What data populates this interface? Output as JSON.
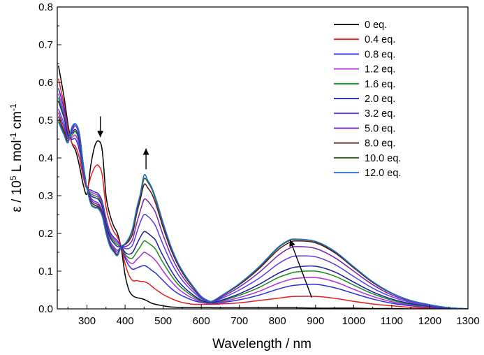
{
  "chart_data": {
    "type": "line",
    "title": "",
    "xlabel": "Wavelength / nm",
    "ylabel": {
      "prefix": "ε / 10",
      "sup1": "5",
      "mid": " L mol",
      "sup2": "-1",
      "mid2": " cm",
      "sup3": "-1"
    },
    "xlim": [
      222,
      1300
    ],
    "ylim": [
      0,
      0.8
    ],
    "x_ticks": [
      300,
      400,
      500,
      600,
      700,
      800,
      900,
      1000,
      1100,
      1200,
      1300
    ],
    "y_ticks": [
      0.0,
      0.1,
      0.2,
      0.3,
      0.4,
      0.5,
      0.6,
      0.7,
      0.8
    ],
    "x_tick_labels": [
      "300",
      "400",
      "500",
      "600",
      "700",
      "800",
      "900",
      "1000",
      "1100",
      "1200",
      "1300"
    ],
    "y_tick_labels": [
      "0.0",
      "0.1",
      "0.2",
      "0.3",
      "0.4",
      "0.5",
      "0.6",
      "0.7",
      "0.8"
    ],
    "grid": false,
    "legend_position": "top-right",
    "x": [
      225,
      240,
      250,
      260,
      270,
      280,
      290,
      300,
      310,
      320,
      330,
      340,
      350,
      360,
      370,
      380,
      390,
      400,
      410,
      420,
      430,
      440,
      450,
      460,
      470,
      480,
      490,
      500,
      520,
      540,
      560,
      580,
      600,
      620,
      630,
      650,
      700,
      750,
      800,
      830,
      850,
      900,
      950,
      1000,
      1050,
      1100,
      1150,
      1200,
      1250,
      1300
    ],
    "series": [
      {
        "name": "0 eq.",
        "color": "#000000",
        "values": [
          0.645,
          0.56,
          0.49,
          0.44,
          0.42,
          0.38,
          0.33,
          0.305,
          0.38,
          0.43,
          0.445,
          0.42,
          0.3,
          0.25,
          0.22,
          0.2,
          0.16,
          0.09,
          0.05,
          0.035,
          0.03,
          0.028,
          0.025,
          0.02,
          0.015,
          0.012,
          0.01,
          0.008,
          0.005,
          0.004,
          0.004,
          0.004,
          0.004,
          0.004,
          0.003,
          0.003,
          0.003,
          0.003,
          0.003,
          0.003,
          0.003,
          0.002,
          0.002,
          0.002,
          0.001,
          0.001,
          0.0,
          0.0,
          0.0,
          0.0
        ]
      },
      {
        "name": "0.4 eq.",
        "color": "#e02020",
        "values": [
          0.61,
          0.54,
          0.48,
          0.44,
          0.43,
          0.4,
          0.35,
          0.32,
          0.35,
          0.375,
          0.38,
          0.355,
          0.27,
          0.23,
          0.205,
          0.19,
          0.165,
          0.12,
          0.09,
          0.075,
          0.075,
          0.073,
          0.072,
          0.068,
          0.06,
          0.052,
          0.045,
          0.038,
          0.028,
          0.02,
          0.015,
          0.012,
          0.012,
          0.012,
          0.012,
          0.013,
          0.016,
          0.022,
          0.028,
          0.032,
          0.033,
          0.033,
          0.028,
          0.02,
          0.013,
          0.008,
          0.004,
          0.002,
          0.001,
          0.0
        ]
      },
      {
        "name": "0.8 eq.",
        "color": "#2b2bd9",
        "values": [
          0.585,
          0.53,
          0.47,
          0.45,
          0.45,
          0.42,
          0.36,
          0.32,
          0.315,
          0.31,
          0.305,
          0.285,
          0.24,
          0.205,
          0.19,
          0.18,
          0.165,
          0.135,
          0.115,
          0.105,
          0.108,
          0.112,
          0.115,
          0.11,
          0.102,
          0.095,
          0.085,
          0.075,
          0.055,
          0.04,
          0.03,
          0.022,
          0.017,
          0.014,
          0.014,
          0.016,
          0.024,
          0.036,
          0.052,
          0.06,
          0.063,
          0.065,
          0.056,
          0.041,
          0.026,
          0.015,
          0.008,
          0.004,
          0.001,
          0.0
        ]
      },
      {
        "name": "1.2 eq.",
        "color": "#b02cd6",
        "values": [
          0.57,
          0.52,
          0.47,
          0.455,
          0.46,
          0.43,
          0.36,
          0.32,
          0.31,
          0.305,
          0.3,
          0.28,
          0.235,
          0.2,
          0.185,
          0.175,
          0.165,
          0.14,
          0.125,
          0.12,
          0.13,
          0.14,
          0.15,
          0.145,
          0.138,
          0.128,
          0.115,
          0.1,
          0.074,
          0.053,
          0.038,
          0.027,
          0.019,
          0.015,
          0.015,
          0.018,
          0.03,
          0.046,
          0.067,
          0.077,
          0.081,
          0.083,
          0.072,
          0.052,
          0.033,
          0.019,
          0.01,
          0.005,
          0.002,
          0.0
        ]
      },
      {
        "name": "1.6 eq.",
        "color": "#1a8c1a",
        "values": [
          0.56,
          0.51,
          0.465,
          0.46,
          0.47,
          0.44,
          0.365,
          0.32,
          0.305,
          0.3,
          0.295,
          0.275,
          0.23,
          0.195,
          0.18,
          0.17,
          0.165,
          0.145,
          0.135,
          0.135,
          0.15,
          0.165,
          0.18,
          0.175,
          0.168,
          0.158,
          0.14,
          0.122,
          0.09,
          0.064,
          0.046,
          0.032,
          0.021,
          0.016,
          0.016,
          0.02,
          0.036,
          0.056,
          0.082,
          0.093,
          0.098,
          0.1,
          0.087,
          0.063,
          0.04,
          0.023,
          0.012,
          0.006,
          0.002,
          0.0
        ]
      },
      {
        "name": "2.0 eq.",
        "color": "#1c1c9e",
        "values": [
          0.55,
          0.505,
          0.46,
          0.465,
          0.475,
          0.445,
          0.37,
          0.32,
          0.3,
          0.295,
          0.29,
          0.27,
          0.225,
          0.19,
          0.175,
          0.165,
          0.165,
          0.15,
          0.145,
          0.15,
          0.17,
          0.19,
          0.205,
          0.2,
          0.192,
          0.182,
          0.16,
          0.14,
          0.103,
          0.073,
          0.052,
          0.036,
          0.023,
          0.017,
          0.017,
          0.022,
          0.04,
          0.064,
          0.093,
          0.106,
          0.111,
          0.113,
          0.098,
          0.071,
          0.045,
          0.026,
          0.014,
          0.007,
          0.002,
          0.0
        ]
      },
      {
        "name": "3.2 eq.",
        "color": "#5a3ce6",
        "values": [
          0.53,
          0.49,
          0.455,
          0.47,
          0.485,
          0.455,
          0.375,
          0.32,
          0.295,
          0.285,
          0.28,
          0.26,
          0.215,
          0.18,
          0.165,
          0.155,
          0.165,
          0.16,
          0.16,
          0.17,
          0.2,
          0.23,
          0.25,
          0.245,
          0.235,
          0.22,
          0.195,
          0.17,
          0.125,
          0.09,
          0.064,
          0.044,
          0.027,
          0.019,
          0.019,
          0.026,
          0.05,
          0.08,
          0.118,
          0.135,
          0.14,
          0.138,
          0.118,
          0.086,
          0.055,
          0.032,
          0.017,
          0.008,
          0.003,
          0.0
        ]
      },
      {
        "name": "5.0 eq.",
        "color": "#7a22a8",
        "values": [
          0.52,
          0.48,
          0.45,
          0.475,
          0.49,
          0.46,
          0.38,
          0.32,
          0.29,
          0.28,
          0.275,
          0.255,
          0.21,
          0.175,
          0.16,
          0.15,
          0.165,
          0.165,
          0.17,
          0.185,
          0.225,
          0.26,
          0.29,
          0.285,
          0.272,
          0.255,
          0.225,
          0.195,
          0.143,
          0.103,
          0.073,
          0.05,
          0.03,
          0.02,
          0.02,
          0.029,
          0.058,
          0.095,
          0.14,
          0.16,
          0.165,
          0.16,
          0.136,
          0.1,
          0.064,
          0.037,
          0.02,
          0.01,
          0.003,
          0.0
        ]
      },
      {
        "name": "8.0 eq.",
        "color": "#5a1010",
        "values": [
          0.51,
          0.47,
          0.445,
          0.48,
          0.49,
          0.465,
          0.385,
          0.32,
          0.285,
          0.275,
          0.27,
          0.25,
          0.205,
          0.17,
          0.155,
          0.145,
          0.165,
          0.17,
          0.18,
          0.2,
          0.25,
          0.29,
          0.33,
          0.32,
          0.305,
          0.28,
          0.248,
          0.215,
          0.158,
          0.114,
          0.081,
          0.055,
          0.032,
          0.021,
          0.021,
          0.032,
          0.064,
          0.105,
          0.155,
          0.175,
          0.18,
          0.175,
          0.149,
          0.109,
          0.07,
          0.041,
          0.022,
          0.011,
          0.003,
          0.0
        ]
      },
      {
        "name": "10.0 eq.",
        "color": "#2c5e12",
        "values": [
          0.5,
          0.465,
          0.44,
          0.48,
          0.49,
          0.465,
          0.385,
          0.32,
          0.28,
          0.27,
          0.268,
          0.248,
          0.203,
          0.168,
          0.153,
          0.143,
          0.165,
          0.172,
          0.185,
          0.21,
          0.258,
          0.3,
          0.345,
          0.335,
          0.318,
          0.29,
          0.258,
          0.224,
          0.164,
          0.118,
          0.084,
          0.057,
          0.033,
          0.021,
          0.021,
          0.033,
          0.066,
          0.108,
          0.16,
          0.18,
          0.184,
          0.178,
          0.152,
          0.111,
          0.072,
          0.042,
          0.022,
          0.011,
          0.003,
          0.0
        ]
      },
      {
        "name": "12.0 eq.",
        "color": "#1f6fd6",
        "values": [
          0.495,
          0.46,
          0.44,
          0.48,
          0.49,
          0.465,
          0.385,
          0.32,
          0.278,
          0.268,
          0.265,
          0.245,
          0.2,
          0.166,
          0.151,
          0.141,
          0.165,
          0.173,
          0.188,
          0.215,
          0.265,
          0.305,
          0.355,
          0.34,
          0.322,
          0.295,
          0.262,
          0.228,
          0.167,
          0.12,
          0.086,
          0.058,
          0.033,
          0.021,
          0.021,
          0.033,
          0.067,
          0.11,
          0.162,
          0.182,
          0.185,
          0.179,
          0.153,
          0.112,
          0.072,
          0.042,
          0.022,
          0.011,
          0.003,
          0.0
        ]
      }
    ],
    "annotations": [
      {
        "type": "arrow-down",
        "x": 335,
        "y_from": 0.51,
        "y_to": 0.455
      },
      {
        "type": "arrow-up",
        "x": 455,
        "y_from": 0.37,
        "y_to": 0.425
      },
      {
        "type": "arrow-diagonal",
        "x_from": 890,
        "y_from": 0.03,
        "x_to": 833,
        "y_to": 0.183
      }
    ]
  }
}
